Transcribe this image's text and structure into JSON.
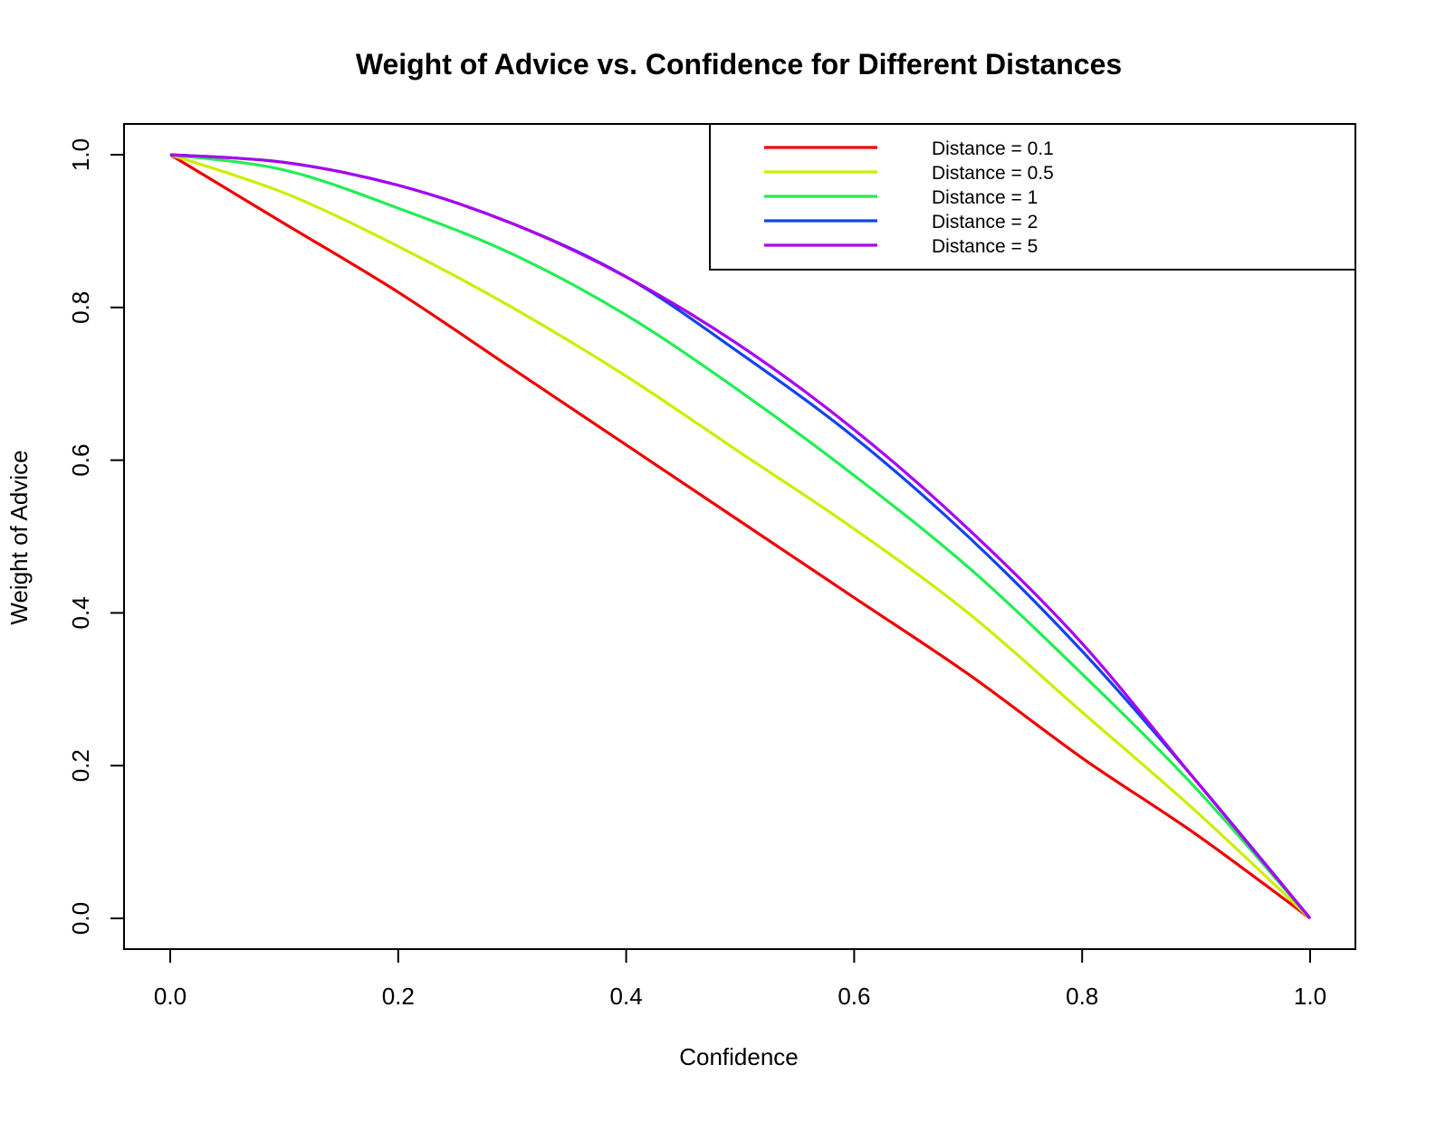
{
  "chart_data": {
    "type": "line",
    "title": "Weight of Advice vs. Confidence for Different Distances",
    "xlabel": "Confidence",
    "ylabel": "Weight of Advice",
    "xlim": [
      0,
      1
    ],
    "ylim": [
      0,
      1
    ],
    "xticks": [
      "0.0",
      "0.2",
      "0.4",
      "0.6",
      "0.8",
      "1.0"
    ],
    "yticks": [
      "0.0",
      "0.2",
      "0.4",
      "0.6",
      "0.8",
      "1.0"
    ],
    "grid": false,
    "legend_position": "top-right",
    "x": [
      0.0,
      0.1,
      0.2,
      0.3,
      0.4,
      0.5,
      0.6,
      0.7,
      0.8,
      0.9,
      1.0
    ],
    "series": [
      {
        "name": "Distance = 0.1",
        "color": "#ee0000",
        "values": [
          1.0,
          0.91,
          0.82,
          0.72,
          0.62,
          0.52,
          0.42,
          0.32,
          0.21,
          0.11,
          0.0
        ]
      },
      {
        "name": "Distance = 0.5",
        "color": "#ccee00",
        "values": [
          1.0,
          0.95,
          0.88,
          0.8,
          0.71,
          0.61,
          0.51,
          0.4,
          0.27,
          0.14,
          0.0
        ]
      },
      {
        "name": "Distance = 1",
        "color": "#22ee55",
        "values": [
          1.0,
          0.98,
          0.93,
          0.87,
          0.79,
          0.69,
          0.58,
          0.46,
          0.32,
          0.17,
          0.0
        ]
      },
      {
        "name": "Distance = 2",
        "color": "#1144ee",
        "values": [
          1.0,
          0.99,
          0.96,
          0.91,
          0.84,
          0.74,
          0.63,
          0.5,
          0.35,
          0.18,
          0.0
        ]
      },
      {
        "name": "Distance = 5",
        "color": "#aa00ee",
        "values": [
          1.0,
          0.99,
          0.96,
          0.91,
          0.84,
          0.75,
          0.64,
          0.51,
          0.36,
          0.18,
          0.0
        ]
      }
    ]
  }
}
